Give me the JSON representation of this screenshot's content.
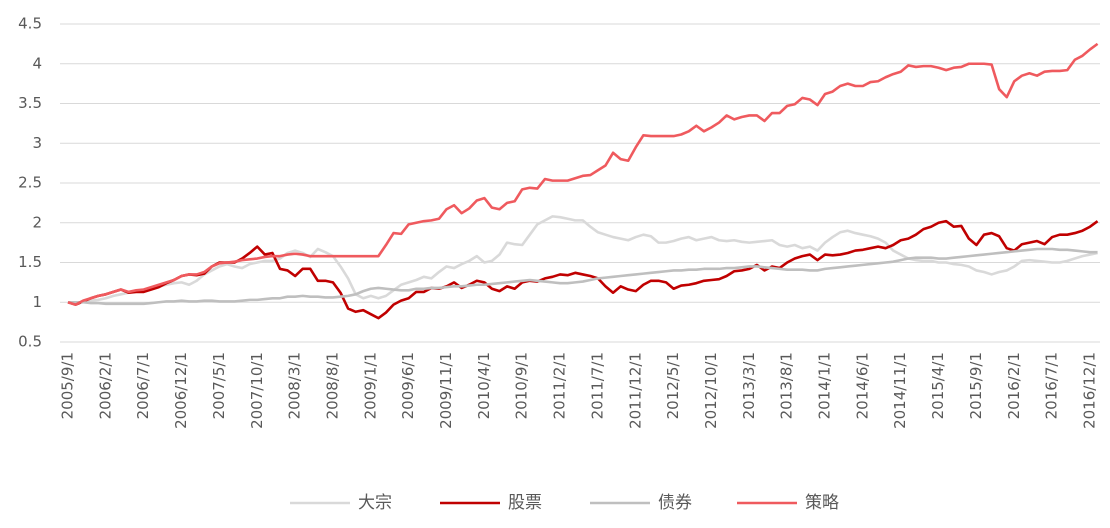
{
  "chart_data": {
    "type": "line",
    "categories": [
      "2005/9/1",
      null,
      null,
      null,
      null,
      "2006/2/1",
      null,
      null,
      null,
      null,
      "2006/7/1",
      null,
      null,
      null,
      null,
      "2006/12/1",
      null,
      null,
      null,
      null,
      "2007/5/1",
      null,
      null,
      null,
      null,
      "2007/10/1",
      null,
      null,
      null,
      null,
      "2008/3/1",
      null,
      null,
      null,
      null,
      "2008/8/1",
      null,
      null,
      null,
      null,
      "2009/1/1",
      null,
      null,
      null,
      null,
      "2009/6/1",
      null,
      null,
      null,
      null,
      "2009/11/1",
      null,
      null,
      null,
      null,
      "2010/4/1",
      null,
      null,
      null,
      null,
      "2010/9/1",
      null,
      null,
      null,
      null,
      "2011/2/1",
      null,
      null,
      null,
      null,
      "2011/7/1",
      null,
      null,
      null,
      null,
      "2011/12/1",
      null,
      null,
      null,
      null,
      "2012/5/1",
      null,
      null,
      null,
      null,
      "2012/10/1",
      null,
      null,
      null,
      null,
      "2013/3/1",
      null,
      null,
      null,
      null,
      "2013/8/1",
      null,
      null,
      null,
      null,
      "2014/1/1",
      null,
      null,
      null,
      null,
      "2014/6/1",
      null,
      null,
      null,
      null,
      "2014/11/1",
      null,
      null,
      null,
      null,
      "2015/4/1",
      null,
      null,
      null,
      null,
      "2015/9/1",
      null,
      null,
      null,
      null,
      "2016/2/1",
      null,
      null,
      null,
      null,
      "2016/7/1",
      null,
      null,
      null,
      null,
      "2016/12/1",
      null
    ],
    "series": [
      {
        "name": "大宗",
        "color": "#d9d9d9",
        "values": [
          1.0,
          0.98,
          1.0,
          1.02,
          1.03,
          1.05,
          1.08,
          1.1,
          1.12,
          1.14,
          1.15,
          1.17,
          1.2,
          1.22,
          1.24,
          1.25,
          1.22,
          1.27,
          1.35,
          1.4,
          1.45,
          1.48,
          1.45,
          1.43,
          1.48,
          1.5,
          1.52,
          1.52,
          1.55,
          1.62,
          1.65,
          1.62,
          1.57,
          1.67,
          1.63,
          1.58,
          1.45,
          1.3,
          1.1,
          1.05,
          1.08,
          1.05,
          1.08,
          1.15,
          1.22,
          1.25,
          1.28,
          1.32,
          1.3,
          1.38,
          1.45,
          1.43,
          1.48,
          1.52,
          1.58,
          1.5,
          1.52,
          1.6,
          1.75,
          1.73,
          1.72,
          1.85,
          1.98,
          2.03,
          2.08,
          2.07,
          2.05,
          2.03,
          2.03,
          1.95,
          1.88,
          1.85,
          1.82,
          1.8,
          1.78,
          1.82,
          1.85,
          1.83,
          1.75,
          1.75,
          1.77,
          1.8,
          1.82,
          1.78,
          1.8,
          1.82,
          1.78,
          1.77,
          1.78,
          1.76,
          1.75,
          1.76,
          1.77,
          1.78,
          1.72,
          1.7,
          1.72,
          1.68,
          1.7,
          1.65,
          1.75,
          1.82,
          1.88,
          1.9,
          1.87,
          1.85,
          1.83,
          1.8,
          1.75,
          1.65,
          1.6,
          1.55,
          1.53,
          1.52,
          1.52,
          1.5,
          1.5,
          1.48,
          1.47,
          1.45,
          1.4,
          1.38,
          1.35,
          1.38,
          1.4,
          1.45,
          1.52,
          1.53,
          1.52,
          1.51,
          1.5,
          1.5,
          1.52,
          1.55,
          1.58,
          1.6,
          1.62
        ]
      },
      {
        "name": "股票",
        "color": "#c00000",
        "values": [
          1.0,
          0.97,
          1.01,
          1.05,
          1.08,
          1.1,
          1.13,
          1.16,
          1.12,
          1.13,
          1.13,
          1.16,
          1.19,
          1.24,
          1.28,
          1.33,
          1.35,
          1.34,
          1.36,
          1.45,
          1.5,
          1.5,
          1.5,
          1.55,
          1.62,
          1.7,
          1.6,
          1.62,
          1.42,
          1.4,
          1.33,
          1.42,
          1.42,
          1.27,
          1.27,
          1.25,
          1.12,
          0.92,
          0.88,
          0.9,
          0.85,
          0.8,
          0.87,
          0.97,
          1.02,
          1.05,
          1.13,
          1.13,
          1.18,
          1.17,
          1.2,
          1.25,
          1.18,
          1.22,
          1.27,
          1.25,
          1.17,
          1.14,
          1.2,
          1.17,
          1.25,
          1.27,
          1.26,
          1.3,
          1.32,
          1.35,
          1.34,
          1.37,
          1.35,
          1.33,
          1.3,
          1.2,
          1.12,
          1.2,
          1.16,
          1.14,
          1.22,
          1.27,
          1.27,
          1.25,
          1.17,
          1.21,
          1.22,
          1.24,
          1.27,
          1.28,
          1.29,
          1.33,
          1.39,
          1.4,
          1.42,
          1.47,
          1.4,
          1.45,
          1.43,
          1.5,
          1.55,
          1.58,
          1.6,
          1.53,
          1.6,
          1.59,
          1.6,
          1.62,
          1.65,
          1.66,
          1.68,
          1.7,
          1.68,
          1.72,
          1.78,
          1.8,
          1.85,
          1.92,
          1.95,
          2.0,
          2.02,
          1.95,
          1.96,
          1.8,
          1.72,
          1.85,
          1.87,
          1.83,
          1.68,
          1.65,
          1.73,
          1.75,
          1.77,
          1.73,
          1.82,
          1.85,
          1.85,
          1.87,
          1.9,
          1.95,
          2.02
        ]
      },
      {
        "name": "债券",
        "color": "#bfbfbf",
        "values": [
          1.0,
          1.0,
          1.0,
          0.99,
          0.99,
          0.98,
          0.98,
          0.98,
          0.98,
          0.98,
          0.98,
          0.99,
          1.0,
          1.01,
          1.01,
          1.02,
          1.01,
          1.01,
          1.02,
          1.02,
          1.01,
          1.01,
          1.01,
          1.02,
          1.03,
          1.03,
          1.04,
          1.05,
          1.05,
          1.07,
          1.07,
          1.08,
          1.07,
          1.07,
          1.06,
          1.06,
          1.07,
          1.08,
          1.1,
          1.14,
          1.17,
          1.18,
          1.17,
          1.16,
          1.15,
          1.15,
          1.17,
          1.17,
          1.18,
          1.18,
          1.19,
          1.2,
          1.2,
          1.21,
          1.22,
          1.22,
          1.23,
          1.24,
          1.25,
          1.26,
          1.27,
          1.28,
          1.27,
          1.26,
          1.25,
          1.24,
          1.24,
          1.25,
          1.26,
          1.28,
          1.3,
          1.31,
          1.32,
          1.33,
          1.34,
          1.35,
          1.36,
          1.37,
          1.38,
          1.39,
          1.4,
          1.4,
          1.41,
          1.41,
          1.42,
          1.42,
          1.42,
          1.43,
          1.43,
          1.44,
          1.45,
          1.45,
          1.44,
          1.43,
          1.42,
          1.41,
          1.41,
          1.41,
          1.4,
          1.4,
          1.42,
          1.43,
          1.44,
          1.45,
          1.46,
          1.47,
          1.48,
          1.49,
          1.5,
          1.51,
          1.53,
          1.55,
          1.56,
          1.56,
          1.56,
          1.55,
          1.55,
          1.56,
          1.57,
          1.58,
          1.59,
          1.6,
          1.61,
          1.62,
          1.63,
          1.64,
          1.65,
          1.66,
          1.67,
          1.67,
          1.67,
          1.66,
          1.66,
          1.65,
          1.64,
          1.63,
          1.63
        ]
      },
      {
        "name": "策略",
        "color": "#ef5a5e",
        "values": [
          1.0,
          0.97,
          1.02,
          1.05,
          1.08,
          1.1,
          1.13,
          1.16,
          1.13,
          1.15,
          1.16,
          1.19,
          1.22,
          1.25,
          1.28,
          1.33,
          1.35,
          1.35,
          1.38,
          1.45,
          1.49,
          1.5,
          1.51,
          1.53,
          1.54,
          1.55,
          1.57,
          1.58,
          1.58,
          1.6,
          1.61,
          1.6,
          1.58,
          1.58,
          1.58,
          1.58,
          1.58,
          1.58,
          1.58,
          1.58,
          1.58,
          1.58,
          1.72,
          1.87,
          1.86,
          1.98,
          2.0,
          2.02,
          2.03,
          2.05,
          2.17,
          2.22,
          2.12,
          2.18,
          2.28,
          2.31,
          2.19,
          2.17,
          2.25,
          2.27,
          2.42,
          2.44,
          2.43,
          2.55,
          2.53,
          2.53,
          2.53,
          2.56,
          2.59,
          2.6,
          2.66,
          2.72,
          2.88,
          2.8,
          2.78,
          2.95,
          3.1,
          3.09,
          3.09,
          3.09,
          3.09,
          3.11,
          3.15,
          3.22,
          3.15,
          3.2,
          3.26,
          3.35,
          3.3,
          3.33,
          3.35,
          3.35,
          3.28,
          3.38,
          3.38,
          3.47,
          3.49,
          3.57,
          3.55,
          3.48,
          3.62,
          3.65,
          3.72,
          3.75,
          3.72,
          3.72,
          3.77,
          3.78,
          3.83,
          3.87,
          3.9,
          3.98,
          3.96,
          3.97,
          3.97,
          3.95,
          3.92,
          3.95,
          3.96,
          4.0,
          4.0,
          4.0,
          3.99,
          3.68,
          3.58,
          3.78,
          3.85,
          3.88,
          3.85,
          3.9,
          3.91,
          3.91,
          3.92,
          4.05,
          4.1,
          4.18,
          4.25
        ]
      }
    ],
    "ylim": [
      0.5,
      4.5
    ],
    "yticks": [
      0.5,
      1,
      1.5,
      2,
      2.5,
      3,
      3.5,
      4,
      4.5
    ],
    "grid": true,
    "legend": "bottom"
  }
}
